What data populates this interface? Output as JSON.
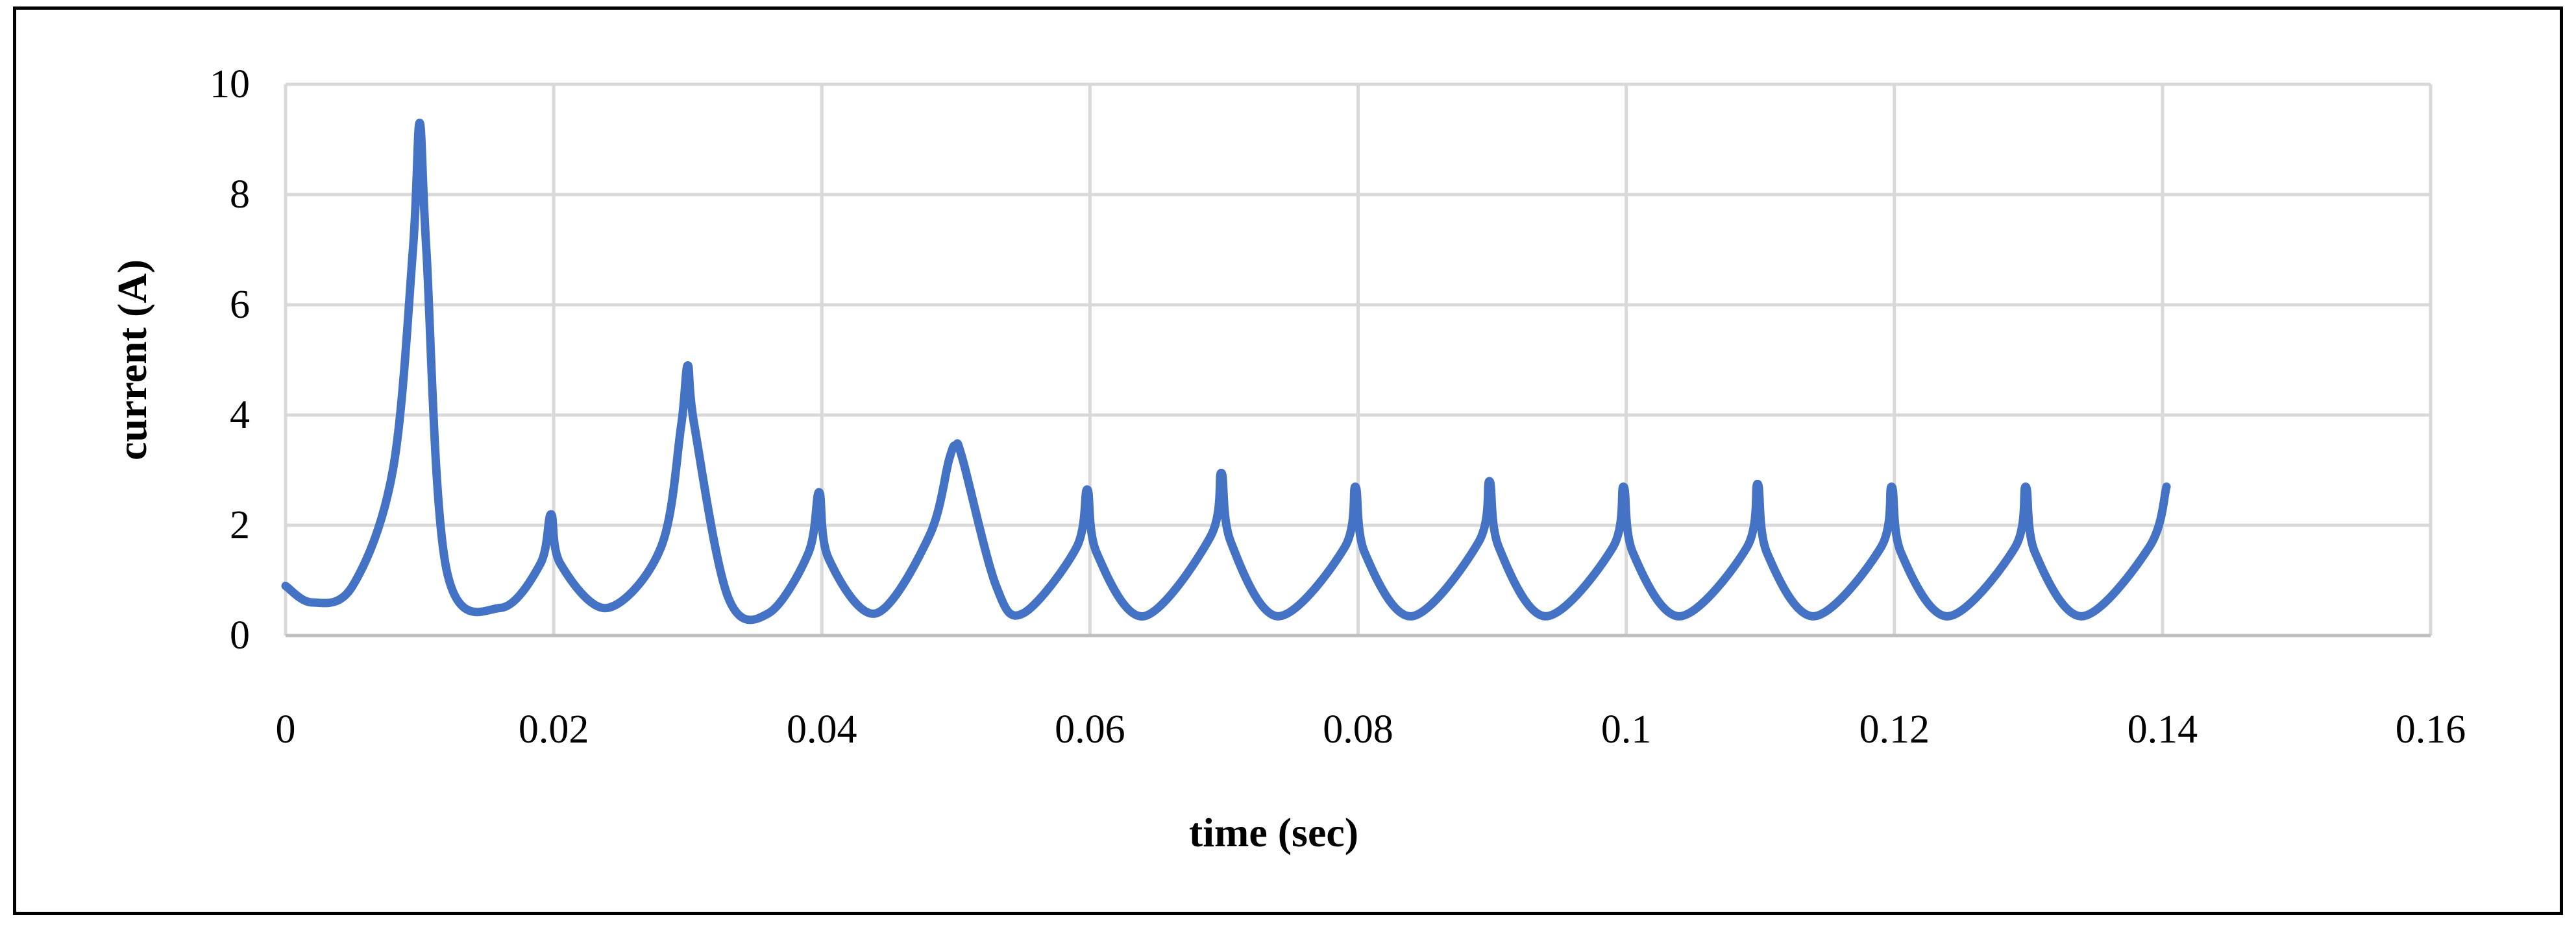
{
  "chart_data": {
    "type": "line",
    "title": "",
    "xlabel": "time (sec)",
    "ylabel": "current (A)",
    "xlim": [
      0,
      0.16
    ],
    "ylim": [
      0,
      10
    ],
    "x_ticks": [
      "0",
      "0.02",
      "0.04",
      "0.06",
      "0.08",
      "0.1",
      "0.12",
      "0.14",
      "0.16"
    ],
    "y_ticks": [
      "0",
      "2",
      "4",
      "6",
      "8",
      "10"
    ],
    "grid": true,
    "legend": "none",
    "series": [
      {
        "color": "#4472C4",
        "x": [
          0,
          0.002,
          0.005,
          0.008,
          0.0095,
          0.01,
          0.0105,
          0.012,
          0.016,
          0.019,
          0.0198,
          0.0205,
          0.024,
          0.028,
          0.0295,
          0.03,
          0.0305,
          0.033,
          0.036,
          0.039,
          0.0398,
          0.0405,
          0.044,
          0.048,
          0.0495,
          0.05,
          0.0505,
          0.053,
          0.055,
          0.059,
          0.0598,
          0.0605,
          0.064,
          0.069,
          0.0698,
          0.0705,
          0.074,
          0.079,
          0.0798,
          0.0805,
          0.084,
          0.089,
          0.0898,
          0.0905,
          0.094,
          0.099,
          0.0998,
          0.1005,
          0.104,
          0.109,
          0.1098,
          0.1105,
          0.114,
          0.119,
          0.1198,
          0.1205,
          0.124,
          0.129,
          0.1298,
          0.1305,
          0.134,
          0.139,
          0.1403
        ],
        "y": [
          0.9,
          0.6,
          0.9,
          3.0,
          7.0,
          9.3,
          7.0,
          1.2,
          0.5,
          1.3,
          2.2,
          1.3,
          0.5,
          1.6,
          3.8,
          4.9,
          3.8,
          0.7,
          0.4,
          1.5,
          2.6,
          1.4,
          0.4,
          1.8,
          3.2,
          3.45,
          3.2,
          0.9,
          0.4,
          1.6,
          2.65,
          1.5,
          0.35,
          1.8,
          2.95,
          1.7,
          0.35,
          1.6,
          2.7,
          1.5,
          0.35,
          1.7,
          2.8,
          1.6,
          0.35,
          1.6,
          2.7,
          1.5,
          0.35,
          1.6,
          2.75,
          1.5,
          0.35,
          1.6,
          2.7,
          1.5,
          0.35,
          1.6,
          2.7,
          1.5,
          0.35,
          1.6,
          2.7
        ]
      }
    ]
  }
}
